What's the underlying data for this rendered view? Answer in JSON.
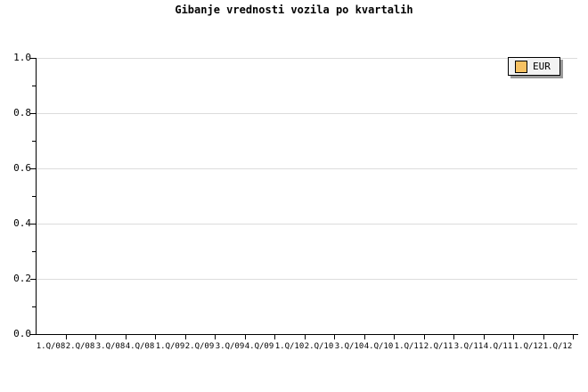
{
  "chart_data": {
    "type": "line",
    "title": "Gibanje vrednosti vozila po kvartalih",
    "categories": [
      "1.Q/08",
      "2.Q/08",
      "3.Q/08",
      "4.Q/08",
      "1.Q/09",
      "2.Q/09",
      "3.Q/09",
      "4.Q/09",
      "1.Q/10",
      "2.Q/10",
      "3.Q/10",
      "4.Q/10",
      "1.Q/11",
      "2.Q/11",
      "3.Q/11",
      "4.Q/11",
      "1.Q/12",
      "1.Q/12"
    ],
    "series": [],
    "ylim": [
      0.0,
      1.0
    ],
    "y_ticks": [
      0.0,
      0.2,
      0.4,
      0.6,
      0.8,
      1.0
    ],
    "y_tick_labels": [
      "0.0",
      "0.2",
      "0.4",
      "0.6",
      "0.8",
      "1.0"
    ],
    "y_minor_ticks": [
      0.1,
      0.3,
      0.5,
      0.7,
      0.9
    ],
    "grid": "horizontal-major",
    "legend_position": "top-right",
    "legend": [
      {
        "label": "EUR",
        "color": "#F6C162"
      }
    ]
  },
  "colors": {
    "background": "#FFFFFF",
    "axis": "#000000",
    "grid": "#DCDCDC",
    "text": "#000000",
    "legend_background": "#F2F2F2",
    "legend_border": "#000000",
    "legend_shadow": "#999999",
    "eur_swatch": "#F6C162"
  }
}
